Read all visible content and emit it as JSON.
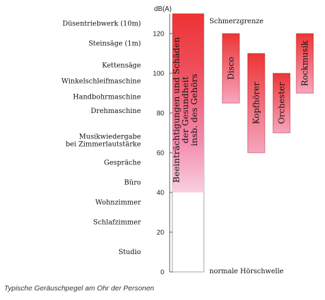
{
  "chart_data": {
    "type": "bar",
    "axis_unit": "dB(A)",
    "ylim": [
      0,
      130
    ],
    "yticks": [
      0,
      20,
      40,
      60,
      80,
      100,
      120
    ],
    "sources": [
      {
        "label": "Düsentriebwerk (10m)",
        "db": 124
      },
      {
        "label": "Steinsäge (1m)",
        "db": 114
      },
      {
        "label": "Kettensäge",
        "db": 103
      },
      {
        "label": "Winkelschleifmaschine",
        "db": 95
      },
      {
        "label": "Handbohrmaschine",
        "db": 87
      },
      {
        "label": "Drehmaschine",
        "db": 80
      },
      {
        "label": "Musikwiedergabe bei Zimmerlautstärke",
        "lines": [
          "Musikwiedergabe",
          "bei Zimmerlautstärke"
        ],
        "db": 67
      },
      {
        "label": "Gespräche",
        "db": 54
      },
      {
        "label": "Büro",
        "db": 44
      },
      {
        "label": "Wohnzimmer",
        "db": 34
      },
      {
        "label": "Schlafzimmer",
        "db": 24
      },
      {
        "label": "Studio",
        "db": 9
      }
    ],
    "main_bar": {
      "range": [
        0,
        130
      ],
      "damage_from": 40,
      "label_lines": [
        "Beeinträchtigungen und Schäden",
        "der Gesundheit",
        "insb. des Gehörs"
      ]
    },
    "thresholds": {
      "upper_label": "Schmerzgrenze",
      "upper_db": 128,
      "lower_label": "normale Hörschwelle",
      "lower_db": 0
    },
    "ranges": [
      {
        "name": "Disco",
        "min": 85,
        "max": 120
      },
      {
        "name": "Kopfhörer",
        "min": 60,
        "max": 110
      },
      {
        "name": "Orchester",
        "min": 70,
        "max": 100
      },
      {
        "name": "Rockmusik",
        "min": 90,
        "max": 120
      }
    ],
    "colors": {
      "red": "#ec3b3b",
      "pink": "#f4a0b4",
      "light_pink": "#f8d2dd"
    }
  },
  "caption": "Typische Geräuschpegel am Ohr der Personen"
}
